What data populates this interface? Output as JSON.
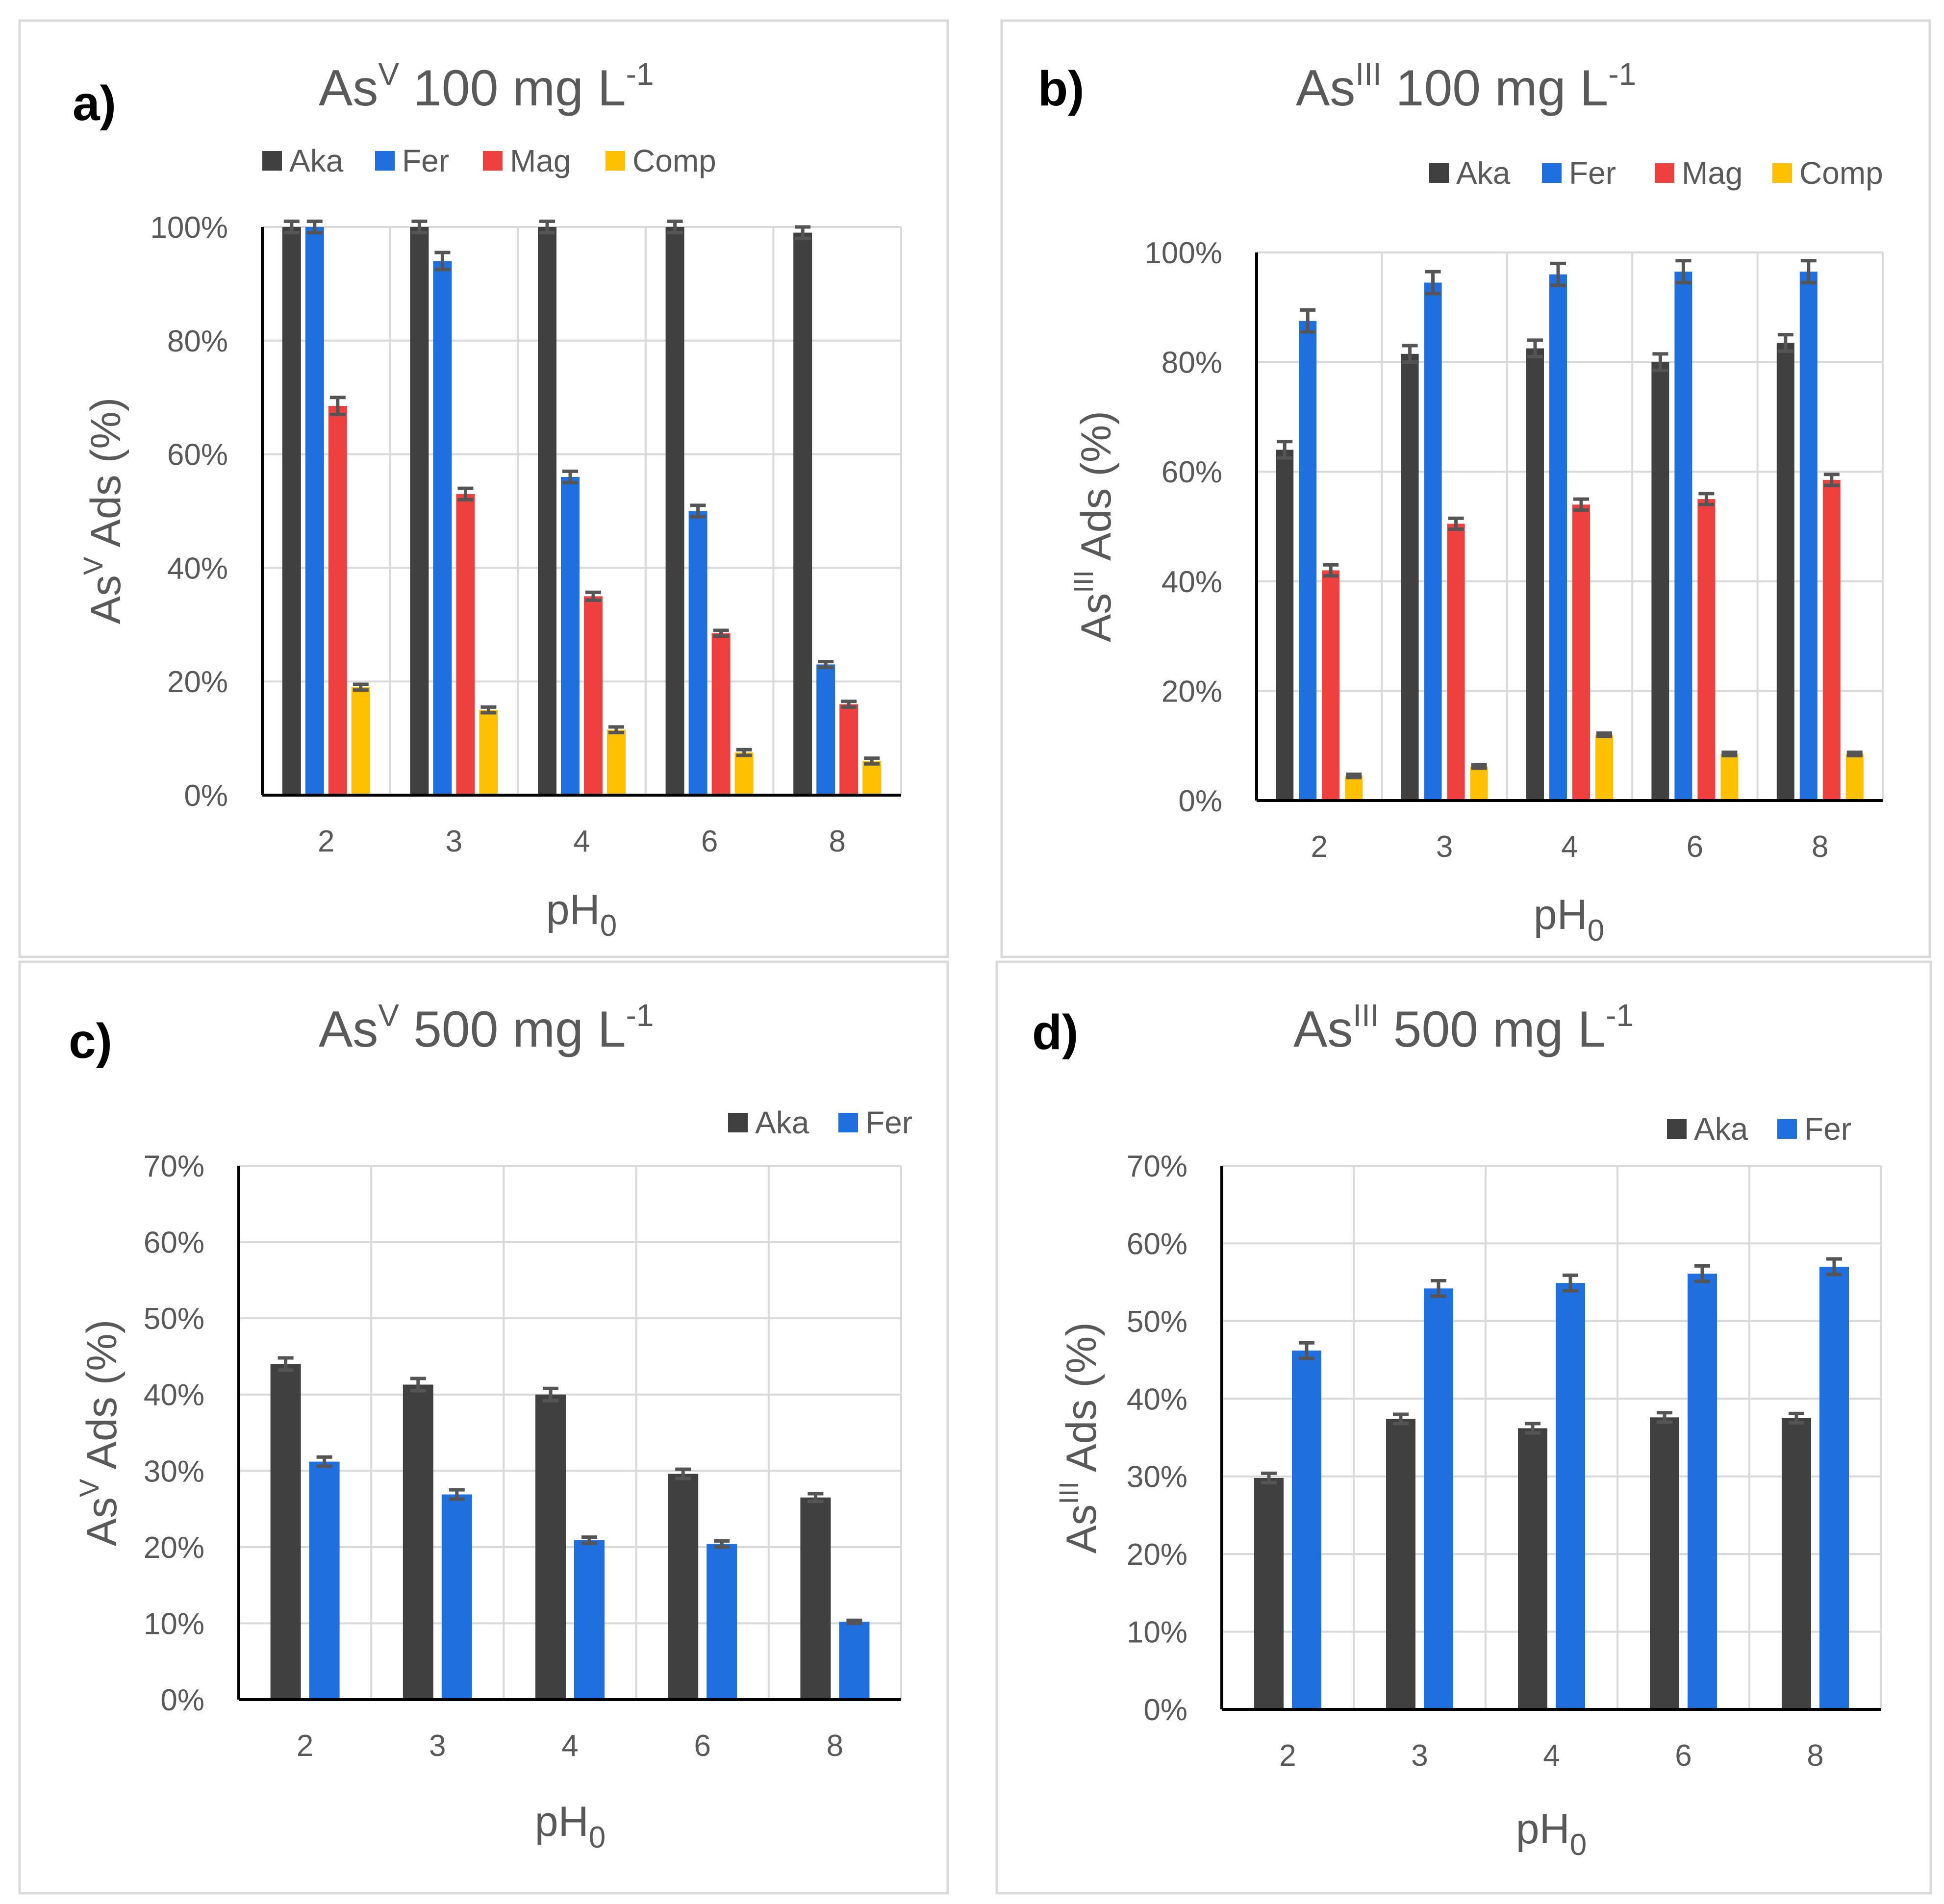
{
  "chart_data": [
    {
      "panel": "a)",
      "type": "bar",
      "title": {
        "base": "As",
        "sup": "V",
        "rest": " 100 mg L",
        "sup2": "-1"
      },
      "ylabel": {
        "base": "As",
        "sup": "V",
        "rest": " Ads (%)"
      },
      "xlabel": {
        "base": "pH",
        "sub": "0"
      },
      "categories": [
        "2",
        "3",
        "4",
        "6",
        "8"
      ],
      "ylim": [
        0,
        100
      ],
      "yticks": [
        "0%",
        "20%",
        "40%",
        "60%",
        "80%",
        "100%"
      ],
      "series": [
        {
          "name": "Aka",
          "color": "#404040",
          "values": [
            100,
            100,
            100,
            100,
            99
          ],
          "errors": [
            1,
            1,
            1,
            1,
            1
          ]
        },
        {
          "name": "Fer",
          "color": "#1f6fdf",
          "values": [
            100,
            94,
            56,
            50,
            23
          ],
          "errors": [
            1,
            1.5,
            1,
            1,
            0.5
          ]
        },
        {
          "name": "Mag",
          "color": "#ef4040",
          "values": [
            68.5,
            53,
            35,
            28.5,
            16
          ],
          "errors": [
            1.5,
            1,
            0.7,
            0.5,
            0.5
          ]
        },
        {
          "name": "Comp",
          "color": "#ffc000",
          "values": [
            19,
            15,
            11.5,
            7.5,
            6
          ],
          "errors": [
            0.5,
            0.5,
            0.5,
            0.5,
            0.5
          ]
        }
      ]
    },
    {
      "panel": "b)",
      "type": "bar",
      "title": {
        "base": "As",
        "sup": "III",
        "rest": " 100 mg L",
        "sup2": "-1"
      },
      "ylabel": {
        "base": "As",
        "sup": "III",
        "rest": " Ads (%)"
      },
      "xlabel": {
        "base": "pH",
        "sub": "0"
      },
      "categories": [
        "2",
        "3",
        "4",
        "6",
        "8"
      ],
      "ylim": [
        0,
        100
      ],
      "yticks": [
        "0%",
        "20%",
        "40%",
        "60%",
        "80%",
        "100%"
      ],
      "series": [
        {
          "name": "Aka",
          "color": "#404040",
          "values": [
            64,
            81.5,
            82.5,
            80,
            83.5
          ],
          "errors": [
            1.5,
            1.5,
            1.5,
            1.5,
            1.5
          ]
        },
        {
          "name": "Fer",
          "color": "#1f6fdf",
          "values": [
            87.5,
            94.5,
            96,
            96.5,
            96.5
          ],
          "errors": [
            2,
            2,
            2,
            2,
            2
          ]
        },
        {
          "name": "Mag",
          "color": "#ef4040",
          "values": [
            42,
            50.5,
            54,
            55,
            58.5
          ],
          "errors": [
            1,
            1,
            1,
            1,
            1
          ]
        },
        {
          "name": "Comp",
          "color": "#ffc000",
          "values": [
            4.5,
            6.2,
            12,
            8.5,
            8.5
          ],
          "errors": [
            0.3,
            0.3,
            0.3,
            0.3,
            0.3
          ]
        }
      ]
    },
    {
      "panel": "c)",
      "type": "bar",
      "title": {
        "base": "As",
        "sup": "V",
        "rest": " 500 mg L",
        "sup2": "-1"
      },
      "ylabel": {
        "base": "As",
        "sup": "V",
        "rest": " Ads (%)"
      },
      "xlabel": {
        "base": "pH",
        "sub": "0"
      },
      "categories": [
        "2",
        "3",
        "4",
        "6",
        "8"
      ],
      "ylim": [
        0,
        70
      ],
      "yticks": [
        "0%",
        "10%",
        "20%",
        "30%",
        "40%",
        "50%",
        "60%",
        "70%"
      ],
      "series": [
        {
          "name": "Aka",
          "color": "#404040",
          "values": [
            44,
            41.3,
            40,
            29.6,
            26.5
          ],
          "errors": [
            0.8,
            0.8,
            0.8,
            0.6,
            0.5
          ]
        },
        {
          "name": "Fer",
          "color": "#1f6fdf",
          "values": [
            31.2,
            26.9,
            20.9,
            20.4,
            10.2
          ],
          "errors": [
            0.6,
            0.6,
            0.4,
            0.4,
            0.2
          ]
        }
      ]
    },
    {
      "panel": "d)",
      "type": "bar",
      "title": {
        "base": "As",
        "sup": "III",
        "rest": " 500 mg L",
        "sup2": "-1"
      },
      "ylabel": {
        "base": "As",
        "sup": "III",
        "rest": " Ads (%)"
      },
      "xlabel": {
        "base": "pH",
        "sub": "0"
      },
      "categories": [
        "2",
        "3",
        "4",
        "6",
        "8"
      ],
      "ylim": [
        0,
        70
      ],
      "yticks": [
        "0%",
        "10%",
        "20%",
        "30%",
        "40%",
        "50%",
        "60%",
        "70%"
      ],
      "series": [
        {
          "name": "Aka",
          "color": "#404040",
          "values": [
            29.8,
            37.4,
            36.2,
            37.6,
            37.5
          ],
          "errors": [
            0.6,
            0.6,
            0.6,
            0.6,
            0.6
          ]
        },
        {
          "name": "Fer",
          "color": "#1f6fdf",
          "values": [
            46.2,
            54.2,
            54.9,
            56.1,
            57
          ],
          "errors": [
            1,
            1,
            1,
            1,
            1
          ]
        }
      ]
    }
  ]
}
